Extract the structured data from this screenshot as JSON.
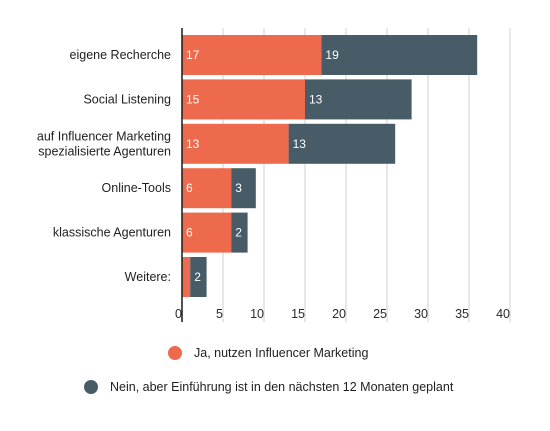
{
  "chart_data": {
    "type": "bar",
    "orientation": "horizontal",
    "stacked": true,
    "categories": [
      [
        "eigene Recherche"
      ],
      [
        "Social Listening"
      ],
      [
        "auf Influencer Marketing",
        "spezialisierte Agenturen"
      ],
      [
        "Online-Tools"
      ],
      [
        "klassische Agenturen"
      ],
      [
        "Weitere:"
      ]
    ],
    "series": [
      {
        "name": "Ja, nutzen Influencer Marketing",
        "color": "#ee6a4d",
        "values": [
          17,
          15,
          13,
          6,
          6,
          1
        ],
        "labels": [
          "17",
          "15",
          "13",
          "6",
          "6",
          ""
        ]
      },
      {
        "name": "Nein, aber Einführung ist in den nächsten 12 Monaten geplant",
        "color": "#475c67",
        "values": [
          19,
          13,
          13,
          3,
          2,
          2
        ],
        "labels": [
          "19",
          "13",
          "13",
          "3",
          "2",
          "2"
        ]
      }
    ],
    "xlim": [
      0,
      40
    ],
    "xticks": [
      0,
      5,
      10,
      15,
      20,
      25,
      30,
      35,
      40
    ],
    "grid": true,
    "legend_position": "bottom",
    "title": "",
    "xlabel": "",
    "ylabel": ""
  },
  "legend": [
    {
      "label": "Ja, nutzen Influencer Marketing",
      "color": "#ee6a4d"
    },
    {
      "label": "Nein, aber Einführung ist in den nächsten 12 Monaten geplant",
      "color": "#475c67"
    }
  ]
}
